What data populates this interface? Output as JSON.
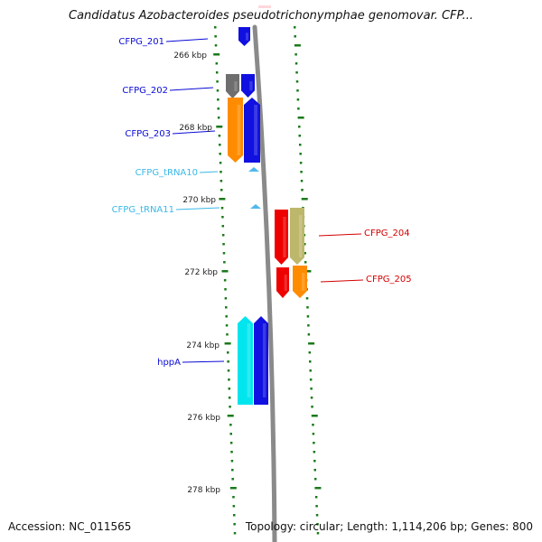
{
  "title": "Candidatus Azobacteroides pseudotrichonymphae genomovar. CFP...",
  "footer": {
    "accession": "Accession: NC_011565",
    "topology": "Topology: circular; Length: 1,114,206 bp; Genes: 800"
  },
  "kbp_ticks": [
    {
      "label": "266 kbp"
    },
    {
      "label": "268 kbp"
    },
    {
      "label": "270 kbp"
    },
    {
      "label": "272 kbp"
    },
    {
      "label": "274 kbp"
    },
    {
      "label": "276 kbp"
    },
    {
      "label": "278 kbp"
    }
  ],
  "genes": [
    {
      "label": "CFPG_201",
      "color": "#0a0ad6"
    },
    {
      "label": "CFPG_202",
      "color": "#0a0ad6"
    },
    {
      "label": "CFPG_203",
      "color": "#0a0ad6"
    },
    {
      "label": "CFPG_tRNA10",
      "color": "#3ab8e8"
    },
    {
      "label": "CFPG_tRNA11",
      "color": "#3ab8e8"
    },
    {
      "label": "CFPG_204",
      "color": "#d40000"
    },
    {
      "label": "CFPG_205",
      "color": "#d40000"
    },
    {
      "label": "hppA",
      "color": "#0a0ad6"
    }
  ],
  "feature_colors": {
    "blue": "#1010e0",
    "gray": "#6e6e6e",
    "orange": "#ff8c00",
    "cyan": "#00e5ee",
    "red": "#ee0000",
    "khaki": "#bdb76b",
    "trna": "#4fb8f0",
    "backbone": "#8a8a8a",
    "ticks": "#1a7a1a"
  }
}
